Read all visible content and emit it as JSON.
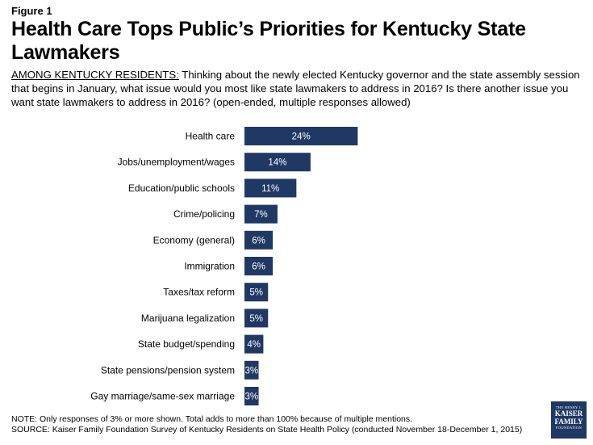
{
  "figure_label": "Figure 1",
  "title": "Health Care Tops Public’s Priorities for Kentucky State Lawmakers",
  "question_lead": "AMONG KENTUCKY RESIDENTS:",
  "question_text": " Thinking about the newly elected Kentucky governor and the state assembly session that begins in January, what issue would you most like state lawmakers to address in 2016? Is there another issue you want state lawmakers to address in 2016? (open-ended, multiple responses allowed)",
  "chart_data": {
    "type": "bar",
    "orientation": "horizontal",
    "categories": [
      "Health care",
      "Jobs/unemployment/wages",
      "Education/public schools",
      "Crime/policing",
      "Economy (general)",
      "Immigration",
      "Taxes/tax reform",
      "Marijuana legalization",
      "State budget/spending",
      "State pensions/pension system",
      "Gay marriage/same-sex marriage"
    ],
    "values": [
      24,
      14,
      11,
      7,
      6,
      6,
      5,
      5,
      4,
      3,
      3
    ],
    "value_labels": [
      "24%",
      "14%",
      "11%",
      "7%",
      "6%",
      "6%",
      "5%",
      "5%",
      "4%",
      "3%",
      "3%"
    ],
    "bar_color": "#1f3864",
    "xlim": [
      0,
      100
    ],
    "grid": false,
    "legend": "none"
  },
  "notes": {
    "note": "NOTE: Only responses of 3% or more shown. Total adds to more than 100% because of multiple mentions.",
    "source": "SOURCE: Kaiser Family Foundation Survey of Kentucky Residents on State Health Policy (conducted November 18-December 1, 2015)"
  },
  "logo": {
    "line1": "THE HENRY J.",
    "line2": "KAISER",
    "line3": "FAMILY",
    "line4": "FOUNDATION"
  }
}
